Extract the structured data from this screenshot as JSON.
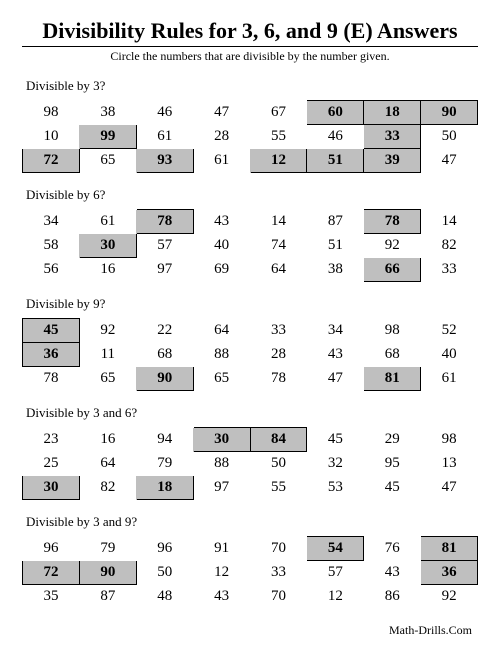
{
  "title": "Divisibility Rules for 3, 6, and 9 (E) Answers",
  "instruction": "Circle the numbers that are divisible by the number given.",
  "footer": "Math-Drills.Com",
  "sections": [
    {
      "label": "Divisible by 3?",
      "rows": [
        [
          {
            "v": "98"
          },
          {
            "v": "38"
          },
          {
            "v": "46"
          },
          {
            "v": "47"
          },
          {
            "v": "67"
          },
          {
            "v": "60",
            "m": true
          },
          {
            "v": "18",
            "m": true
          },
          {
            "v": "90",
            "m": true
          }
        ],
        [
          {
            "v": "10"
          },
          {
            "v": "99",
            "m": true
          },
          {
            "v": "61"
          },
          {
            "v": "28"
          },
          {
            "v": "55"
          },
          {
            "v": "46"
          },
          {
            "v": "33",
            "m": true
          },
          {
            "v": "50"
          }
        ],
        [
          {
            "v": "72",
            "m": true
          },
          {
            "v": "65"
          },
          {
            "v": "93",
            "m": true
          },
          {
            "v": "61"
          },
          {
            "v": "12",
            "m": true
          },
          {
            "v": "51",
            "m": true
          },
          {
            "v": "39",
            "m": true
          },
          {
            "v": "47"
          }
        ]
      ]
    },
    {
      "label": "Divisible by 6?",
      "rows": [
        [
          {
            "v": "34"
          },
          {
            "v": "61"
          },
          {
            "v": "78",
            "m": true
          },
          {
            "v": "43"
          },
          {
            "v": "14"
          },
          {
            "v": "87"
          },
          {
            "v": "78",
            "m": true
          },
          {
            "v": "14"
          }
        ],
        [
          {
            "v": "58"
          },
          {
            "v": "30",
            "m": true
          },
          {
            "v": "57"
          },
          {
            "v": "40"
          },
          {
            "v": "74"
          },
          {
            "v": "51"
          },
          {
            "v": "92"
          },
          {
            "v": "82"
          }
        ],
        [
          {
            "v": "56"
          },
          {
            "v": "16"
          },
          {
            "v": "97"
          },
          {
            "v": "69"
          },
          {
            "v": "64"
          },
          {
            "v": "38"
          },
          {
            "v": "66",
            "m": true
          },
          {
            "v": "33"
          }
        ]
      ]
    },
    {
      "label": "Divisible by 9?",
      "rows": [
        [
          {
            "v": "45",
            "m": true
          },
          {
            "v": "92"
          },
          {
            "v": "22"
          },
          {
            "v": "64"
          },
          {
            "v": "33"
          },
          {
            "v": "34"
          },
          {
            "v": "98"
          },
          {
            "v": "52"
          }
        ],
        [
          {
            "v": "36",
            "m": true
          },
          {
            "v": "11"
          },
          {
            "v": "68"
          },
          {
            "v": "88"
          },
          {
            "v": "28"
          },
          {
            "v": "43"
          },
          {
            "v": "68"
          },
          {
            "v": "40"
          }
        ],
        [
          {
            "v": "78"
          },
          {
            "v": "65"
          },
          {
            "v": "90",
            "m": true
          },
          {
            "v": "65"
          },
          {
            "v": "78"
          },
          {
            "v": "47"
          },
          {
            "v": "81",
            "m": true
          },
          {
            "v": "61"
          }
        ]
      ]
    },
    {
      "label": "Divisible by 3 and 6?",
      "rows": [
        [
          {
            "v": "23"
          },
          {
            "v": "16"
          },
          {
            "v": "94"
          },
          {
            "v": "30",
            "m": true
          },
          {
            "v": "84",
            "m": true
          },
          {
            "v": "45"
          },
          {
            "v": "29"
          },
          {
            "v": "98"
          }
        ],
        [
          {
            "v": "25"
          },
          {
            "v": "64"
          },
          {
            "v": "79"
          },
          {
            "v": "88"
          },
          {
            "v": "50"
          },
          {
            "v": "32"
          },
          {
            "v": "95"
          },
          {
            "v": "13"
          }
        ],
        [
          {
            "v": "30",
            "m": true
          },
          {
            "v": "82"
          },
          {
            "v": "18",
            "m": true
          },
          {
            "v": "97"
          },
          {
            "v": "55"
          },
          {
            "v": "53"
          },
          {
            "v": "45"
          },
          {
            "v": "47"
          }
        ]
      ]
    },
    {
      "label": "Divisible by 3 and 9?",
      "rows": [
        [
          {
            "v": "96"
          },
          {
            "v": "79"
          },
          {
            "v": "96"
          },
          {
            "v": "91"
          },
          {
            "v": "70"
          },
          {
            "v": "54",
            "m": true
          },
          {
            "v": "76"
          },
          {
            "v": "81",
            "m": true
          }
        ],
        [
          {
            "v": "72",
            "m": true
          },
          {
            "v": "90",
            "m": true
          },
          {
            "v": "50"
          },
          {
            "v": "12"
          },
          {
            "v": "33"
          },
          {
            "v": "57"
          },
          {
            "v": "43"
          },
          {
            "v": "36",
            "m": true
          }
        ],
        [
          {
            "v": "35"
          },
          {
            "v": "87"
          },
          {
            "v": "48"
          },
          {
            "v": "43"
          },
          {
            "v": "70"
          },
          {
            "v": "12"
          },
          {
            "v": "86"
          },
          {
            "v": "92"
          }
        ]
      ]
    }
  ]
}
